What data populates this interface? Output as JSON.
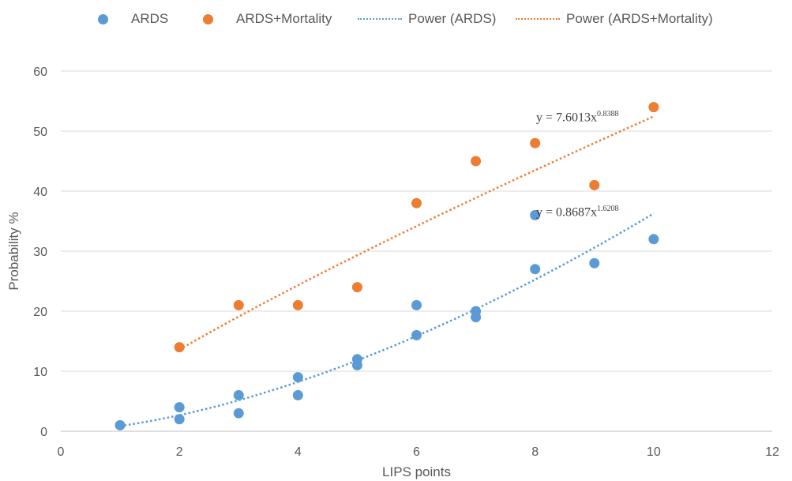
{
  "chart_data": {
    "type": "scatter",
    "xlabel": "LIPS points",
    "ylabel": "Probability %",
    "xlim": [
      0,
      12
    ],
    "ylim": [
      0,
      60
    ],
    "xticks": [
      0,
      2,
      4,
      6,
      8,
      10,
      12
    ],
    "yticks": [
      0,
      10,
      20,
      30,
      40,
      50,
      60
    ],
    "grid": "horizontal",
    "legend_position": "top",
    "series": [
      {
        "name": "ARDS",
        "color": "#5B9BD5",
        "points": [
          [
            1,
            1
          ],
          [
            2,
            4
          ],
          [
            2,
            2
          ],
          [
            3,
            6
          ],
          [
            3,
            3
          ],
          [
            4,
            9
          ],
          [
            4,
            6
          ],
          [
            5,
            12
          ],
          [
            5,
            11
          ],
          [
            6,
            21
          ],
          [
            6,
            16
          ],
          [
            7,
            20
          ],
          [
            7,
            19
          ],
          [
            8,
            36
          ],
          [
            8,
            27
          ],
          [
            9,
            28
          ],
          [
            10,
            32
          ]
        ]
      },
      {
        "name": "ARDS+Mortality",
        "color": "#ED7D31",
        "points": [
          [
            2,
            14
          ],
          [
            3,
            21
          ],
          [
            4,
            21
          ],
          [
            5,
            24
          ],
          [
            6,
            38
          ],
          [
            7,
            45
          ],
          [
            8,
            48
          ],
          [
            9,
            41
          ],
          [
            10,
            54
          ]
        ]
      }
    ],
    "trendlines": [
      {
        "name": "Power (ARDS)",
        "color": "#5B9BD5",
        "a": 0.8687,
        "b": 1.6208,
        "x_range": [
          1,
          10
        ],
        "equation_prefix": "y = 0.8687x",
        "equation_exp": "1.6208"
      },
      {
        "name": "Power (ARDS+Mortality)",
        "color": "#ED7D31",
        "a": 7.6013,
        "b": 0.8388,
        "x_range": [
          2,
          10
        ],
        "equation_prefix": "y = 7.6013x",
        "equation_exp": "0.8388"
      }
    ]
  }
}
